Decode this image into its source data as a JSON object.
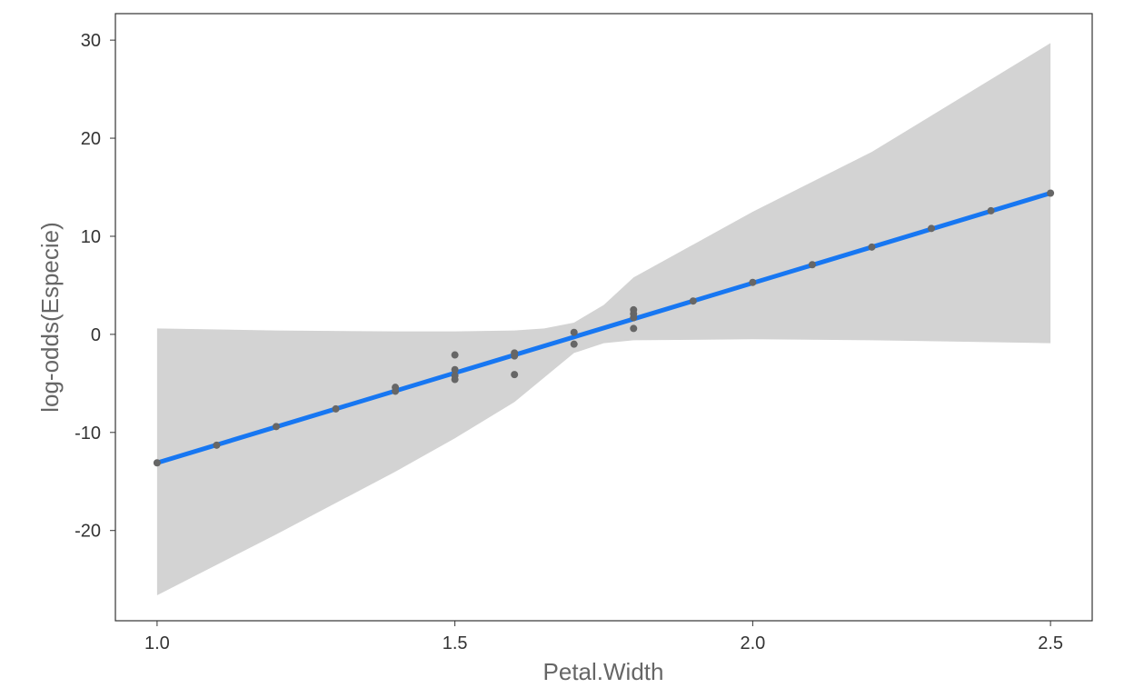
{
  "chart_data": {
    "type": "scatter",
    "title": "",
    "xlabel": "Petal.Width",
    "ylabel": "log-odds(Especie)",
    "xlim": [
      0.93,
      2.57
    ],
    "ylim": [
      -29.2,
      32.7
    ],
    "x_ticks": [
      1.0,
      1.5,
      2.0,
      2.5
    ],
    "x_tick_labels": [
      "1.0",
      "1.5",
      "2.0",
      "2.5"
    ],
    "y_ticks": [
      -20,
      -10,
      0,
      10,
      20,
      30
    ],
    "y_tick_labels": [
      "-20",
      "-10",
      "0",
      "10",
      "20",
      "30"
    ],
    "grid": false,
    "legend": "none",
    "colors": {
      "fit_line": "#1777f2",
      "ribbon": "#d3d3d3",
      "points": "#666666",
      "panel_border": "#333333"
    },
    "points": [
      {
        "x": 1.0,
        "y": -13.1
      },
      {
        "x": 1.1,
        "y": -11.3
      },
      {
        "x": 1.2,
        "y": -9.4
      },
      {
        "x": 1.3,
        "y": -7.6
      },
      {
        "x": 1.4,
        "y": -5.4
      },
      {
        "x": 1.4,
        "y": -5.8
      },
      {
        "x": 1.5,
        "y": -2.1
      },
      {
        "x": 1.5,
        "y": -3.6
      },
      {
        "x": 1.5,
        "y": -4.2
      },
      {
        "x": 1.5,
        "y": -4.6
      },
      {
        "x": 1.6,
        "y": -1.9
      },
      {
        "x": 1.6,
        "y": -2.2
      },
      {
        "x": 1.6,
        "y": -4.1
      },
      {
        "x": 1.7,
        "y": 0.2
      },
      {
        "x": 1.7,
        "y": -1.0
      },
      {
        "x": 1.8,
        "y": 2.5
      },
      {
        "x": 1.8,
        "y": 2.1
      },
      {
        "x": 1.8,
        "y": 1.7
      },
      {
        "x": 1.8,
        "y": 0.6
      },
      {
        "x": 1.9,
        "y": 3.4
      },
      {
        "x": 2.0,
        "y": 5.3
      },
      {
        "x": 2.1,
        "y": 7.1
      },
      {
        "x": 2.2,
        "y": 8.9
      },
      {
        "x": 2.3,
        "y": 10.8
      },
      {
        "x": 2.4,
        "y": 12.6
      },
      {
        "x": 2.5,
        "y": 14.4
      }
    ],
    "fit_line": {
      "x": [
        1.0,
        2.5
      ],
      "y": [
        -13.1,
        14.4
      ]
    },
    "confidence_band": {
      "x": [
        1.0,
        1.2,
        1.4,
        1.5,
        1.6,
        1.65,
        1.7,
        1.75,
        1.8,
        2.0,
        2.2,
        2.5
      ],
      "upper": [
        0.6,
        0.4,
        0.3,
        0.3,
        0.4,
        0.6,
        1.2,
        3.0,
        5.8,
        12.5,
        18.6,
        29.7
      ],
      "lower": [
        -26.6,
        -20.4,
        -14.0,
        -10.6,
        -6.9,
        -4.4,
        -1.9,
        -0.9,
        -0.6,
        -0.5,
        -0.6,
        -0.9
      ]
    }
  }
}
